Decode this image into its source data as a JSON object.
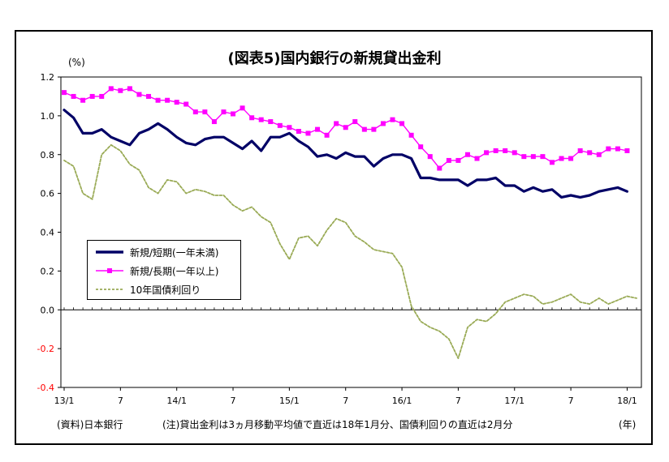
{
  "chart_data": {
    "type": "line",
    "title": "(図表5)国内銀行の新規貸出金利",
    "unit_label": "(%)",
    "x_unit_label": "(年)",
    "x_tick_labels": [
      "13/1",
      "7",
      "14/1",
      "7",
      "15/1",
      "7",
      "16/1",
      "7",
      "17/1",
      "7",
      "18/1"
    ],
    "x_tick_months": [
      "2013-01",
      "2013-07",
      "2014-01",
      "2014-07",
      "2015-01",
      "2015-07",
      "2016-01",
      "2016-07",
      "2017-01",
      "2017-07",
      "2018-01"
    ],
    "x_range": [
      "2013-01",
      "2018-02"
    ],
    "y_ticks": [
      "1.2",
      "1.0",
      "0.8",
      "0.6",
      "0.4",
      "0.2",
      "0.0",
      "-0.2",
      "-0.4"
    ],
    "ylim": [
      -0.4,
      1.2
    ],
    "negative_tick_color": "#ff0000",
    "series": [
      {
        "name": "新規/短期(一年未満)",
        "color": "#000066",
        "style": "solid-thick",
        "start": "2013-01",
        "values": [
          1.03,
          0.99,
          0.91,
          0.91,
          0.93,
          0.89,
          0.87,
          0.85,
          0.91,
          0.93,
          0.96,
          0.93,
          0.89,
          0.86,
          0.85,
          0.88,
          0.89,
          0.89,
          0.86,
          0.83,
          0.87,
          0.82,
          0.89,
          0.89,
          0.91,
          0.87,
          0.84,
          0.79,
          0.8,
          0.78,
          0.81,
          0.79,
          0.79,
          0.74,
          0.78,
          0.8,
          0.8,
          0.78,
          0.68,
          0.68,
          0.67,
          0.67,
          0.67,
          0.64,
          0.67,
          0.67,
          0.68,
          0.64,
          0.64,
          0.61,
          0.63,
          0.61,
          0.62,
          0.58,
          0.59,
          0.58,
          0.59,
          0.61,
          0.62,
          0.63,
          0.61
        ]
      },
      {
        "name": "新規/長期(一年以上)",
        "color": "#ff00ff",
        "style": "solid-square",
        "start": "2013-01",
        "values": [
          1.12,
          1.1,
          1.08,
          1.1,
          1.1,
          1.14,
          1.13,
          1.14,
          1.11,
          1.1,
          1.08,
          1.08,
          1.07,
          1.06,
          1.02,
          1.02,
          0.97,
          1.02,
          1.01,
          1.04,
          0.99,
          0.98,
          0.97,
          0.95,
          0.94,
          0.92,
          0.91,
          0.93,
          0.9,
          0.96,
          0.94,
          0.97,
          0.93,
          0.93,
          0.96,
          0.98,
          0.96,
          0.9,
          0.84,
          0.79,
          0.73,
          0.77,
          0.77,
          0.8,
          0.78,
          0.81,
          0.82,
          0.82,
          0.81,
          0.79,
          0.79,
          0.79,
          0.76,
          0.78,
          0.78,
          0.82,
          0.81,
          0.8,
          0.83,
          0.83,
          0.82
        ]
      },
      {
        "name": "10年国債利回り",
        "color": "#99aa55",
        "style": "dashed",
        "start": "2013-01",
        "values": [
          0.77,
          0.74,
          0.6,
          0.57,
          0.8,
          0.85,
          0.82,
          0.75,
          0.72,
          0.63,
          0.6,
          0.67,
          0.66,
          0.6,
          0.62,
          0.61,
          0.59,
          0.59,
          0.54,
          0.51,
          0.53,
          0.48,
          0.45,
          0.34,
          0.26,
          0.37,
          0.38,
          0.33,
          0.41,
          0.47,
          0.45,
          0.38,
          0.35,
          0.31,
          0.3,
          0.29,
          0.22,
          0.02,
          -0.06,
          -0.09,
          -0.11,
          -0.15,
          -0.25,
          -0.09,
          -0.05,
          -0.06,
          -0.02,
          0.04,
          0.06,
          0.08,
          0.07,
          0.03,
          0.04,
          0.06,
          0.08,
          0.04,
          0.03,
          0.06,
          0.03,
          0.05,
          0.07,
          0.06
        ]
      }
    ],
    "legend_position": "lower-left inside plot",
    "grid": false
  },
  "footer": {
    "source": "(資料)日本銀行",
    "note": "(注)貸出金利は3ヵ月移動平均値で直近は18年1月分、国債利回りの直近は2月分"
  }
}
